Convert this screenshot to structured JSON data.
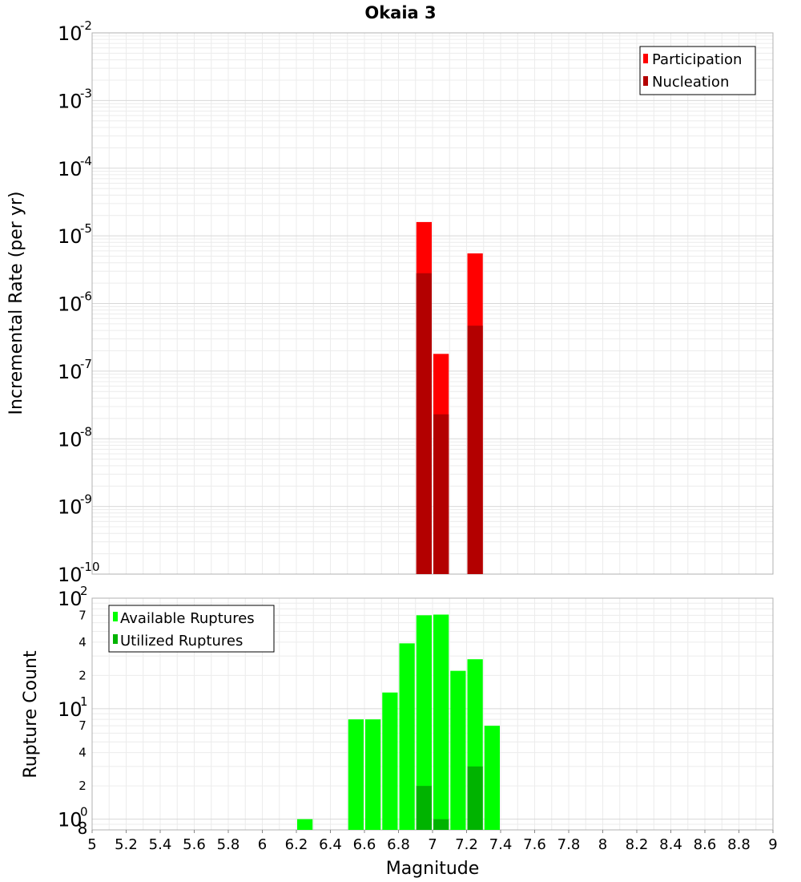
{
  "chart_data": [
    {
      "type": "bar",
      "title": "Okaia 3",
      "ylabel": "Incremental Rate (per yr)",
      "xlabel": "",
      "y_scale": "log",
      "ylim": [
        1e-10,
        0.01
      ],
      "xlim": [
        5,
        9
      ],
      "grid": true,
      "legend_position": "top-right",
      "y_tick_labels": [
        {
          "base": "10",
          "exp": "-10"
        },
        {
          "base": "10",
          "exp": "-9"
        },
        {
          "base": "10",
          "exp": "-8"
        },
        {
          "base": "10",
          "exp": "-7"
        },
        {
          "base": "10",
          "exp": "-6"
        },
        {
          "base": "10",
          "exp": "-5"
        },
        {
          "base": "10",
          "exp": "-4"
        },
        {
          "base": "10",
          "exp": "-3"
        },
        {
          "base": "10",
          "exp": "-2"
        }
      ],
      "x": [
        6.95,
        7.05,
        7.25
      ],
      "series": [
        {
          "name": "Participation",
          "color": "#ff0000",
          "values": [
            1.6e-05,
            1.8e-07,
            5.5e-06
          ]
        },
        {
          "name": "Nucleation",
          "color": "#b30000",
          "values": [
            2.8e-06,
            2.3e-08,
            4.7e-07
          ]
        }
      ]
    },
    {
      "type": "bar",
      "title": "",
      "ylabel": "Rupture Count",
      "xlabel": "Magnitude",
      "y_scale": "log",
      "ylim": [
        0.8,
        100
      ],
      "xlim": [
        5,
        9
      ],
      "grid": true,
      "legend_position": "top-left",
      "y_tick_labels": [
        {
          "base": "10",
          "exp": "0"
        },
        {
          "base": "10",
          "exp": "1"
        },
        {
          "base": "10",
          "exp": "2"
        }
      ],
      "y_minor_labels": [
        "8",
        "2",
        "4",
        "7",
        "2",
        "4",
        "7"
      ],
      "x_tick_labels": [
        "5",
        "5.2",
        "5.4",
        "5.6",
        "5.8",
        "6",
        "6.2",
        "6.4",
        "6.6",
        "6.8",
        "7",
        "7.2",
        "7.4",
        "7.6",
        "7.8",
        "8",
        "8.2",
        "8.4",
        "8.6",
        "8.8",
        "9"
      ],
      "x": [
        6.25,
        6.55,
        6.65,
        6.75,
        6.85,
        6.95,
        7.05,
        7.15,
        7.25,
        7.35
      ],
      "series": [
        {
          "name": "Available Ruptures",
          "color": "#00ff00",
          "values": [
            1,
            8,
            8,
            14,
            39,
            70,
            71,
            22,
            28,
            7
          ]
        },
        {
          "name": "Utilized Ruptures",
          "color": "#00b300",
          "values": [
            0,
            0,
            0,
            0,
            0,
            2,
            1,
            0,
            3,
            0
          ]
        }
      ]
    }
  ]
}
